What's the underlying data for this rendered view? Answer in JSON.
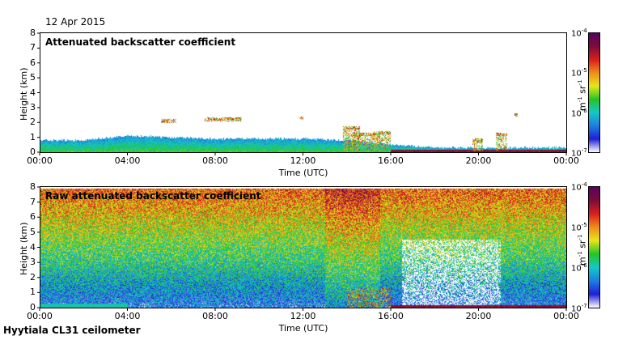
{
  "date_label": "12 Apr 2015",
  "footer_label": "Hyytiala CL31 ceilometer",
  "colorbar": {
    "tick_labels": [
      {
        "base": "10",
        "exp": "-4"
      },
      {
        "base": "10",
        "exp": "-5"
      },
      {
        "base": "10",
        "exp": "-6"
      },
      {
        "base": "10",
        "exp": "-7"
      }
    ],
    "unit_parts": {
      "m": "m",
      "m_exp": "-1",
      "sr": " sr",
      "sr_exp": "-1"
    },
    "colormap": [
      "#ffffff",
      "#1f1fd6",
      "#1d7fe0",
      "#14c8c8",
      "#26c426",
      "#e6e619",
      "#f08c1a",
      "#d81e1e",
      "#7a0d3a",
      "#5a0060"
    ]
  },
  "chart_data": [
    {
      "type": "heatmap",
      "title": "Attenuated backscatter coefficient",
      "xlabel": "Time (UTC)",
      "ylabel": "Height (km)",
      "x_tick_labels": [
        "00:00",
        "04:00",
        "08:00",
        "12:00",
        "16:00",
        "20:00",
        "00:00"
      ],
      "x_range_hours": [
        0,
        24
      ],
      "y_tick_labels": [
        "0",
        "1",
        "2",
        "3",
        "4",
        "5",
        "6",
        "7",
        "8"
      ],
      "ylim": [
        0,
        8
      ],
      "color_scale": "log",
      "clim": [
        1e-07,
        0.0001
      ],
      "features": {
        "boundary_layer_top_km": [
          [
            0,
            0.8
          ],
          [
            2,
            0.8
          ],
          [
            4,
            1.1
          ],
          [
            6,
            1.0
          ],
          [
            8,
            0.9
          ],
          [
            10,
            0.9
          ],
          [
            12,
            0.9
          ],
          [
            14,
            0.8
          ],
          [
            16,
            0.5
          ],
          [
            18,
            0.3
          ],
          [
            20,
            0.3
          ],
          [
            22,
            0.3
          ],
          [
            24,
            0.3
          ]
        ],
        "cloud_patches": [
          {
            "t_start": 5.5,
            "t_end": 6.2,
            "h_km": 2.1
          },
          {
            "t_start": 7.5,
            "t_end": 9.2,
            "h_km": 2.2
          },
          {
            "t_start": 11.8,
            "t_end": 12.0,
            "h_km": 2.3
          },
          {
            "t_start": 13.8,
            "t_end": 14.6,
            "h_km": 1.6
          },
          {
            "t_start": 14.2,
            "t_end": 15.5,
            "h_km": 1.2
          },
          {
            "t_start": 15.2,
            "t_end": 16.0,
            "h_km": 1.3
          },
          {
            "t_start": 19.7,
            "t_end": 20.2,
            "h_km": 0.8
          },
          {
            "t_start": 20.8,
            "t_end": 21.3,
            "h_km": 1.2
          },
          {
            "t_start": 21.6,
            "t_end": 21.8,
            "h_km": 2.5
          }
        ]
      }
    },
    {
      "type": "heatmap",
      "title": "Raw attenuated backscatter coefficient",
      "xlabel": "Time (UTC)",
      "ylabel": "Height (km)",
      "x_tick_labels": [
        "00:00",
        "04:00",
        "08:00",
        "12:00",
        "16:00",
        "20:00",
        "00:00"
      ],
      "x_range_hours": [
        0,
        24
      ],
      "y_tick_labels": [
        "0",
        "1",
        "2",
        "3",
        "4",
        "5",
        "6",
        "7",
        "8"
      ],
      "ylim": [
        0,
        8
      ],
      "color_scale": "log",
      "clim": [
        1e-07,
        0.0001
      ],
      "features": {
        "noise_increases_with_height": true,
        "low_noise_window_hours": [
          16.5,
          21
        ]
      }
    }
  ]
}
